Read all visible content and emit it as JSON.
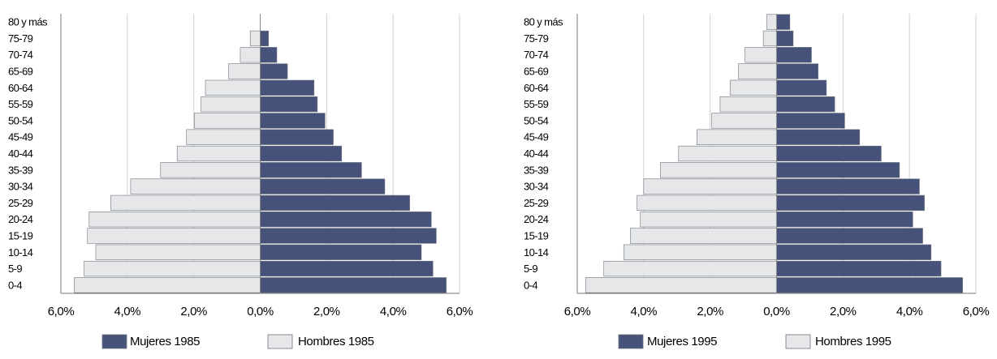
{
  "chart_data": [
    {
      "type": "bar",
      "orientation": "horizontal-pyramid",
      "categories": [
        "0-4",
        "5-9",
        "10-14",
        "15-19",
        "20-24",
        "25-29",
        "30-34",
        "35-39",
        "40-44",
        "45-49",
        "50-54",
        "55-59",
        "60-64",
        "65-69",
        "70-74",
        "75-79",
        "80 y más"
      ],
      "series": [
        {
          "name": "Mujeres 1985",
          "side": "right",
          "color": "#46527a",
          "values": [
            5.6,
            5.2,
            4.85,
            5.3,
            5.15,
            4.5,
            3.75,
            3.05,
            2.45,
            2.2,
            1.95,
            1.72,
            1.62,
            0.82,
            0.5,
            0.25,
            0
          ]
        },
        {
          "name": "Hombres 1985",
          "side": "left",
          "color": "#e6e7e9",
          "values": [
            5.6,
            5.3,
            4.95,
            5.2,
            5.15,
            4.5,
            3.9,
            3.0,
            2.5,
            2.22,
            1.98,
            1.78,
            1.65,
            0.95,
            0.6,
            0.3,
            0
          ]
        }
      ],
      "xticks": [
        "6,0%",
        "4,0%",
        "2,0%",
        "0,0%",
        "2,0%",
        "4,0%",
        "6,0%"
      ],
      "xlim": [
        -6,
        6
      ],
      "grid": true,
      "legend": "bottom"
    },
    {
      "type": "bar",
      "orientation": "horizontal-pyramid",
      "categories": [
        "0-4",
        "5-9",
        "10-14",
        "15-19",
        "20-24",
        "25-29",
        "30-34",
        "35-39",
        "40-44",
        "45-49",
        "50-54",
        "55-59",
        "60-64",
        "65-69",
        "70-74",
        "75-79",
        "80 y más"
      ],
      "series": [
        {
          "name": "Mujeres 1995",
          "side": "right",
          "color": "#46527a",
          "values": [
            5.6,
            4.95,
            4.65,
            4.4,
            4.1,
            4.45,
            4.3,
            3.7,
            3.15,
            2.5,
            2.05,
            1.75,
            1.5,
            1.25,
            1.05,
            0.5,
            0.4
          ]
        },
        {
          "name": "Hombres 1995",
          "side": "left",
          "color": "#e6e7e9",
          "values": [
            5.75,
            5.2,
            4.6,
            4.4,
            4.1,
            4.2,
            4.0,
            3.5,
            2.95,
            2.4,
            1.95,
            1.7,
            1.4,
            1.15,
            0.95,
            0.4,
            0.3
          ]
        }
      ],
      "xticks": [
        "6,0%",
        "4,0%",
        "2,0%",
        "0,0%",
        "2,0%",
        "4,0%",
        "6,0%"
      ],
      "xlim": [
        -6,
        6
      ],
      "grid": true,
      "legend": "bottom"
    }
  ]
}
